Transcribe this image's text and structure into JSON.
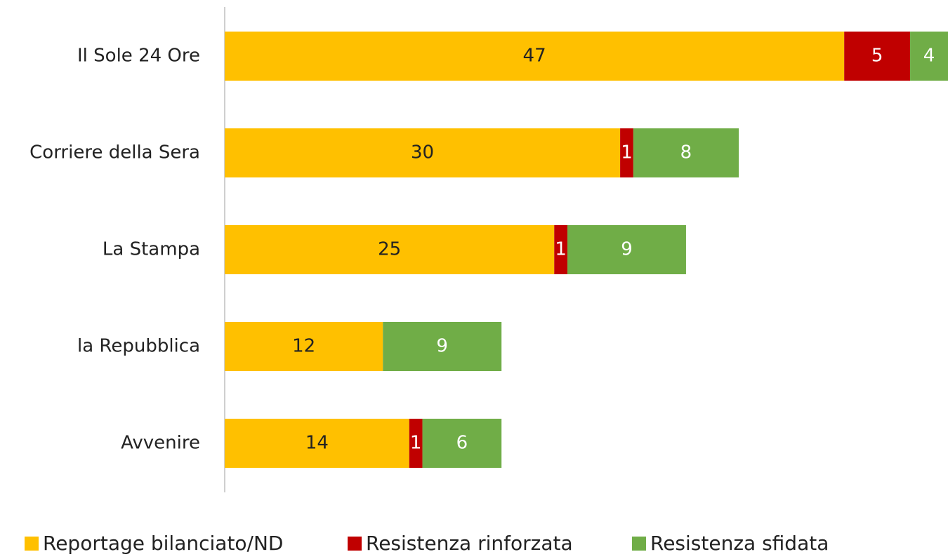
{
  "chart_data": {
    "type": "stacked-bar-horizontal",
    "categories": [
      "Il Sole 24 Ore",
      "Corriere della Sera",
      "La Stampa",
      "la Repubblica",
      "Avvenire"
    ],
    "series": [
      {
        "name": "Reportage bilanciato/ND",
        "color": "#ffc000",
        "label_color": "#222222",
        "values": [
          47,
          30,
          25,
          12,
          14
        ]
      },
      {
        "name": "Resistenza rinforzata",
        "color": "#c00000",
        "label_color": "#ffffff",
        "values": [
          5,
          1,
          1,
          null,
          1
        ]
      },
      {
        "name": "Resistenza sfidata",
        "color": "#70ad47",
        "label_color": "#ffffff",
        "values": [
          4,
          8,
          9,
          9,
          6
        ]
      }
    ]
  }
}
